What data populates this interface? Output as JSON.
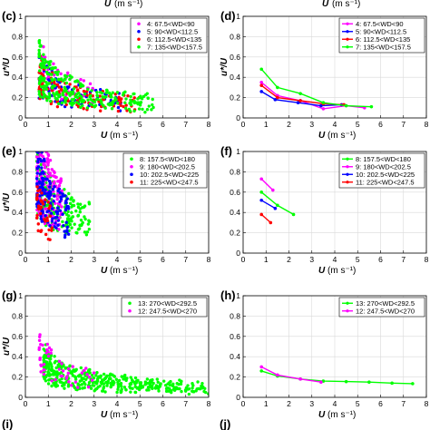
{
  "figure": {
    "top_axis_labels": [
      {
        "var": "U",
        "unit": "(m s⁻¹)"
      },
      {
        "var": "U",
        "unit": "(m s⁻¹)"
      }
    ],
    "bottom_panel_letters": [
      "(i)",
      "(j)"
    ]
  },
  "chart_data": [
    {
      "id": "c",
      "panel_label": "(c)",
      "type": "scatter",
      "xlabel": "U",
      "xunit": "(m s⁻¹)",
      "ylabel": "u*/U",
      "xlim": [
        0,
        8
      ],
      "ylim": [
        0,
        1
      ],
      "xticks": [
        "0",
        "1",
        "2",
        "3",
        "4",
        "5",
        "6",
        "7",
        "8"
      ],
      "yticks": [
        "0",
        "0.2",
        "0.4",
        "0.6",
        "0.8",
        "1"
      ],
      "legend_position": "top-right",
      "grid": true,
      "series": [
        {
          "name": "4: 67.5<WD<90",
          "color": "#ff00ff",
          "x_range": [
            0.7,
            3.0
          ],
          "center": [
            1.3,
            0.35
          ],
          "n": 60
        },
        {
          "name": "5: 90<WD<112.5",
          "color": "#0000ff",
          "x_range": [
            0.6,
            4.2
          ],
          "center": [
            1.6,
            0.25
          ],
          "n": 80
        },
        {
          "name": "6: 112.5<WD<135",
          "color": "#ff0000",
          "x_range": [
            0.6,
            5.0
          ],
          "center": [
            2.0,
            0.22
          ],
          "n": 120
        },
        {
          "name": "7: 135<WD<157.5",
          "color": "#00ff00",
          "x_range": [
            0.6,
            5.6
          ],
          "center": [
            1.5,
            0.3
          ],
          "n": 260
        }
      ]
    },
    {
      "id": "d",
      "panel_label": "(d)",
      "type": "line",
      "xlabel": "U",
      "xunit": "(m s⁻¹)",
      "ylabel": "u*/U",
      "xlim": [
        0,
        8
      ],
      "ylim": [
        0,
        1
      ],
      "xticks": [
        "0",
        "1",
        "2",
        "3",
        "4",
        "5",
        "6",
        "7",
        "8"
      ],
      "yticks": [
        "0",
        "0.2",
        "0.4",
        "0.6",
        "0.8",
        "1"
      ],
      "legend_position": "top-right",
      "grid": true,
      "series": [
        {
          "name": "4: 67.5<WD<90",
          "color": "#ff00ff",
          "points": [
            [
              0.8,
              0.35
            ],
            [
              1.5,
              0.22
            ],
            [
              2.5,
              0.17
            ],
            [
              3.5,
              0.09
            ],
            [
              4.5,
              0.12
            ],
            [
              5.3,
              0.1
            ]
          ]
        },
        {
          "name": "5: 90<WD<112.5",
          "color": "#0000ff",
          "points": [
            [
              0.8,
              0.26
            ],
            [
              1.4,
              0.18
            ],
            [
              2.4,
              0.15
            ],
            [
              3.4,
              0.12
            ],
            [
              4.3,
              0.13
            ]
          ]
        },
        {
          "name": "6: 112.5<WD<135",
          "color": "#ff0000",
          "points": [
            [
              0.8,
              0.32
            ],
            [
              1.5,
              0.2
            ],
            [
              2.5,
              0.17
            ],
            [
              3.5,
              0.14
            ],
            [
              4.4,
              0.13
            ]
          ]
        },
        {
          "name": "7: 135<WD<157.5",
          "color": "#00ff00",
          "points": [
            [
              0.8,
              0.48
            ],
            [
              1.5,
              0.3
            ],
            [
              2.5,
              0.24
            ],
            [
              3.5,
              0.15
            ],
            [
              4.5,
              0.12
            ],
            [
              5.6,
              0.11
            ]
          ]
        }
      ]
    },
    {
      "id": "e",
      "panel_label": "(e)",
      "type": "scatter",
      "xlabel": "U",
      "xunit": "(m s⁻¹)",
      "ylabel": "u*/U",
      "xlim": [
        0,
        8
      ],
      "ylim": [
        0,
        1
      ],
      "xticks": [
        "0",
        "1",
        "2",
        "3",
        "4",
        "5",
        "6",
        "7",
        "8"
      ],
      "yticks": [
        "0",
        "0.2",
        "0.4",
        "0.6",
        "0.8",
        "1"
      ],
      "legend_position": "top-right",
      "grid": true,
      "series": [
        {
          "name": "8: 157.5<WD<180",
          "color": "#00ff00",
          "x_range": [
            0.5,
            2.8
          ],
          "center": [
            1.4,
            0.45
          ],
          "n": 200
        },
        {
          "name": "9: 180<WD<202.5",
          "color": "#ff00ff",
          "x_range": [
            0.5,
            1.6
          ],
          "center": [
            0.8,
            0.7
          ],
          "n": 200
        },
        {
          "name": "10: 202.5<WD<225",
          "color": "#0000ff",
          "x_range": [
            0.5,
            1.9
          ],
          "center": [
            1.1,
            0.5
          ],
          "n": 150
        },
        {
          "name": "11: 225<WD<247.5",
          "color": "#ff0000",
          "x_range": [
            0.5,
            1.2
          ],
          "center": [
            0.8,
            0.38
          ],
          "n": 40
        }
      ]
    },
    {
      "id": "f",
      "panel_label": "(f)",
      "type": "line",
      "xlabel": "U",
      "xunit": "(m s⁻¹)",
      "ylabel": "",
      "xlim": [
        0,
        8
      ],
      "ylim": [
        0,
        1
      ],
      "xticks": [
        "0",
        "1",
        "2",
        "3",
        "4",
        "5",
        "6",
        "7",
        "8"
      ],
      "yticks": [
        "0",
        "0.2",
        "0.4",
        "0.6",
        "0.8",
        "1"
      ],
      "legend_position": "top-right",
      "grid": true,
      "series": [
        {
          "name": "8: 157.5<WD<180",
          "color": "#00ff00",
          "points": [
            [
              0.8,
              0.6
            ],
            [
              1.5,
              0.47
            ],
            [
              2.2,
              0.38
            ]
          ]
        },
        {
          "name": "9: 180<WD<202.5",
          "color": "#ff00ff",
          "points": [
            [
              0.8,
              0.73
            ],
            [
              1.3,
              0.62
            ]
          ]
        },
        {
          "name": "10: 202.5<WD<225",
          "color": "#0000ff",
          "points": [
            [
              0.8,
              0.52
            ],
            [
              1.4,
              0.44
            ]
          ]
        },
        {
          "name": "11: 225<WD<247.5",
          "color": "#ff0000",
          "points": [
            [
              0.8,
              0.38
            ],
            [
              1.2,
              0.3
            ]
          ]
        }
      ]
    },
    {
      "id": "g",
      "panel_label": "(g)",
      "type": "scatter",
      "xlabel": "U",
      "xunit": "(m s⁻¹)",
      "ylabel": "u*/U",
      "xlim": [
        0,
        8
      ],
      "ylim": [
        0,
        1
      ],
      "xticks": [
        "0",
        "1",
        "2",
        "3",
        "4",
        "5",
        "6",
        "7",
        "8"
      ],
      "yticks": [
        "0",
        "0.2",
        "0.4",
        "0.6",
        "0.8",
        "1"
      ],
      "legend_position": "top-right",
      "grid": true,
      "series": [
        {
          "name": "13: 270<WD<292.5",
          "color": "#00ff00",
          "x_range": [
            0.8,
            8.0
          ],
          "center": [
            4.0,
            0.14
          ],
          "n": 420
        },
        {
          "name": "12: 247.5<WD<270",
          "color": "#ff00ff",
          "x_range": [
            0.6,
            3.0
          ],
          "center": [
            1.2,
            0.3
          ],
          "n": 50
        }
      ]
    },
    {
      "id": "h",
      "panel_label": "(h)",
      "type": "line",
      "xlabel": "U",
      "xunit": "(m s⁻¹)",
      "ylabel": "",
      "xlim": [
        0,
        8
      ],
      "ylim": [
        0,
        1
      ],
      "xticks": [
        "0",
        "1",
        "2",
        "3",
        "4",
        "5",
        "6",
        "7",
        "8"
      ],
      "yticks": [
        "0",
        "0.2",
        "0.4",
        "0.6",
        "0.8",
        "1"
      ],
      "legend_position": "top-right",
      "grid": true,
      "series": [
        {
          "name": "13: 270<WD<292.5",
          "color": "#00ff00",
          "points": [
            [
              0.8,
              0.26
            ],
            [
              1.5,
              0.21
            ],
            [
              2.5,
              0.18
            ],
            [
              3.5,
              0.16
            ],
            [
              4.5,
              0.155
            ],
            [
              5.5,
              0.15
            ],
            [
              6.5,
              0.14
            ],
            [
              7.4,
              0.135
            ]
          ]
        },
        {
          "name": "12: 247.5<WD<270",
          "color": "#ff00ff",
          "points": [
            [
              0.8,
              0.3
            ],
            [
              1.5,
              0.22
            ],
            [
              2.5,
              0.18
            ],
            [
              3.4,
              0.15
            ]
          ]
        }
      ]
    }
  ]
}
